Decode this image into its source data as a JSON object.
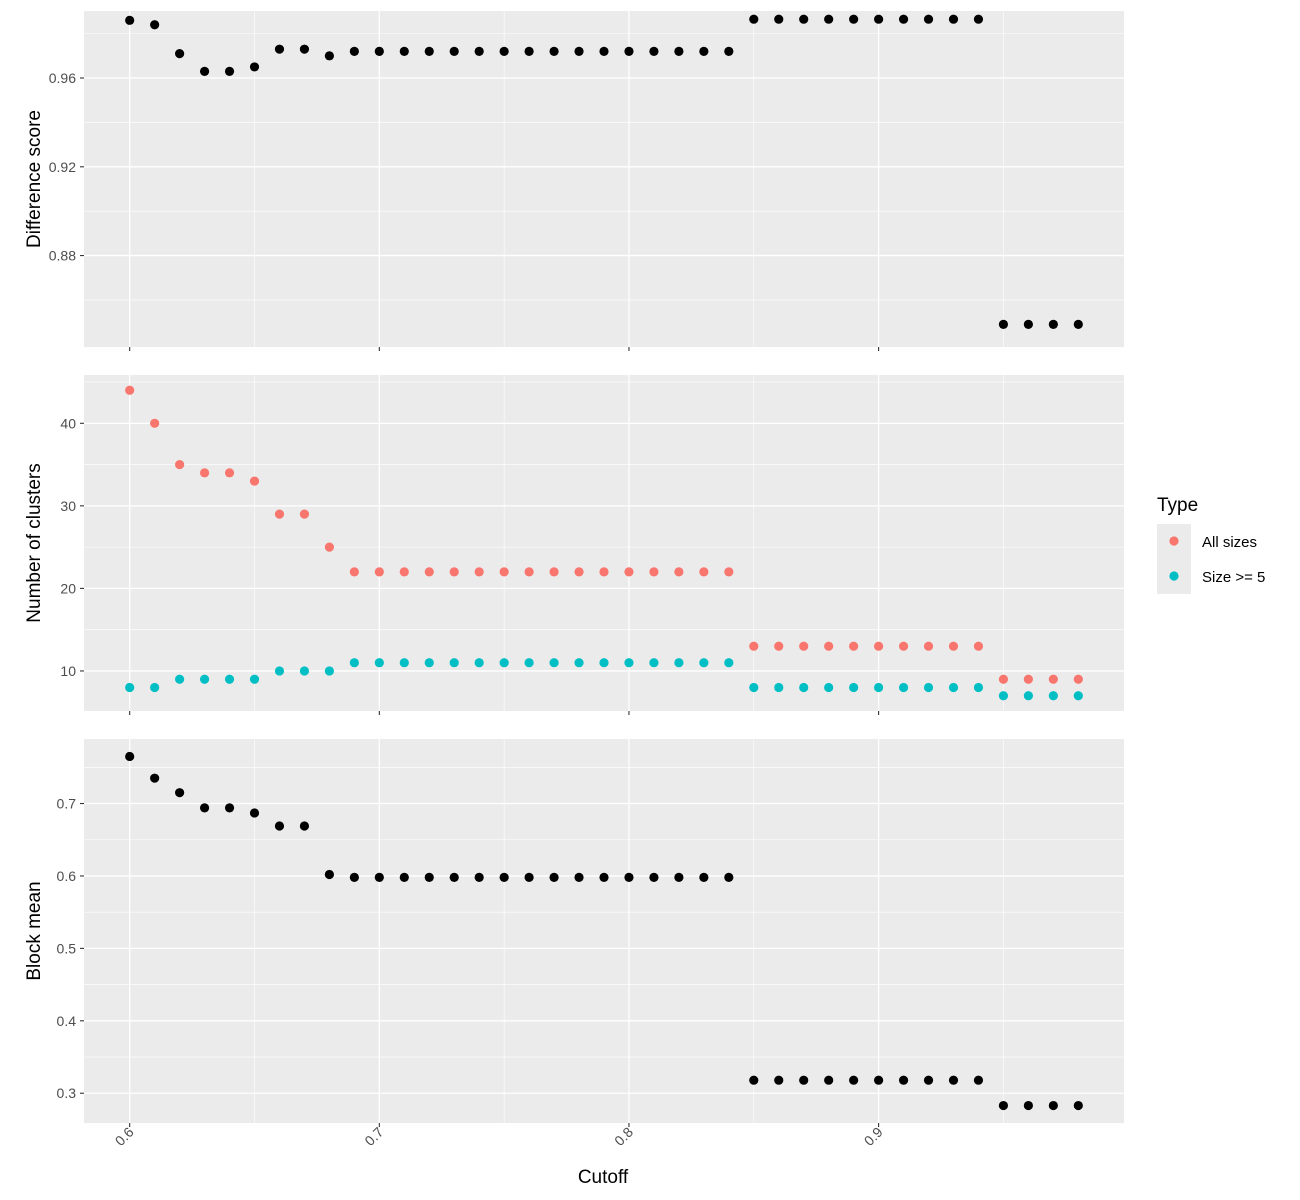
{
  "chart_data": {
    "type": "scatter",
    "xlabel": "Cutoff",
    "x": [
      0.6,
      0.61,
      0.62,
      0.63,
      0.64,
      0.65,
      0.66,
      0.67,
      0.68,
      0.69,
      0.7,
      0.71,
      0.72,
      0.73,
      0.74,
      0.75,
      0.76,
      0.77,
      0.78,
      0.79,
      0.8,
      0.81,
      0.82,
      0.83,
      0.84,
      0.85,
      0.86,
      0.87,
      0.88,
      0.89,
      0.9,
      0.91,
      0.92,
      0.93,
      0.94,
      0.95,
      0.96,
      0.97,
      0.98
    ],
    "x_ticks": [
      0.6,
      0.7,
      0.8,
      0.9
    ],
    "x_tick_labels": [
      "0.6",
      "0.7",
      "0.8",
      "0.9"
    ],
    "xlim": [
      0.5817,
      0.9983
    ],
    "grid": true,
    "background": "#ebebeb",
    "legend": {
      "title": "Type",
      "position": "right",
      "entries": [
        {
          "label": "All sizes",
          "color": "#f8766d"
        },
        {
          "label": "Size >= 5",
          "color": "#00bfc4"
        }
      ]
    },
    "panels": [
      {
        "ylabel": "Difference score",
        "ylim": [
          0.8388,
          0.9902
        ],
        "y_ticks": [
          0.88,
          0.92,
          0.96
        ],
        "y_tick_labels": [
          "0.88",
          "0.92",
          "0.96"
        ],
        "series": [
          {
            "color": "#000000",
            "values": [
              0.986,
              0.984,
              0.971,
              0.963,
              0.963,
              0.965,
              0.973,
              0.973,
              0.97,
              0.972,
              0.972,
              0.972,
              0.972,
              0.972,
              0.972,
              0.972,
              0.972,
              0.972,
              0.972,
              0.972,
              0.972,
              0.972,
              0.972,
              0.972,
              0.972,
              0.9865,
              0.9865,
              0.9865,
              0.9865,
              0.9865,
              0.9865,
              0.9865,
              0.9865,
              0.9865,
              0.9865,
              0.849,
              0.849,
              0.849,
              0.849
            ]
          }
        ]
      },
      {
        "ylabel": "Number of clusters",
        "ylim": [
          5.15,
          45.85
        ],
        "y_ticks": [
          10,
          20,
          30,
          40
        ],
        "y_tick_labels": [
          "10",
          "20",
          "30",
          "40"
        ],
        "series": [
          {
            "name": "All sizes",
            "color": "#f8766d",
            "values": [
              44,
              40,
              35,
              34,
              34,
              33,
              29,
              29,
              25,
              22,
              22,
              22,
              22,
              22,
              22,
              22,
              22,
              22,
              22,
              22,
              22,
              22,
              22,
              22,
              22,
              13,
              13,
              13,
              13,
              13,
              13,
              13,
              13,
              13,
              13,
              9,
              9,
              9,
              9
            ]
          },
          {
            "name": "Size >= 5",
            "color": "#00bfc4",
            "values": [
              8,
              8,
              9,
              9,
              9,
              9,
              10,
              10,
              10,
              11,
              11,
              11,
              11,
              11,
              11,
              11,
              11,
              11,
              11,
              11,
              11,
              11,
              11,
              11,
              11,
              8,
              8,
              8,
              8,
              8,
              8,
              8,
              8,
              8,
              8,
              7,
              7,
              7,
              7
            ]
          }
        ]
      },
      {
        "ylabel": "Block mean",
        "ylim": [
          0.2589,
          0.7891
        ],
        "y_ticks": [
          0.3,
          0.4,
          0.5,
          0.6,
          0.7
        ],
        "y_tick_labels": [
          "0.3",
          "0.4",
          "0.5",
          "0.6",
          "0.7"
        ],
        "series": [
          {
            "color": "#000000",
            "values": [
              0.765,
              0.735,
              0.715,
              0.694,
              0.694,
              0.687,
              0.669,
              0.669,
              0.602,
              0.598,
              0.598,
              0.598,
              0.598,
              0.598,
              0.598,
              0.598,
              0.598,
              0.598,
              0.598,
              0.598,
              0.598,
              0.598,
              0.598,
              0.598,
              0.598,
              0.318,
              0.318,
              0.318,
              0.318,
              0.318,
              0.318,
              0.318,
              0.318,
              0.318,
              0.318,
              0.283,
              0.283,
              0.283,
              0.283
            ]
          }
        ]
      }
    ]
  }
}
